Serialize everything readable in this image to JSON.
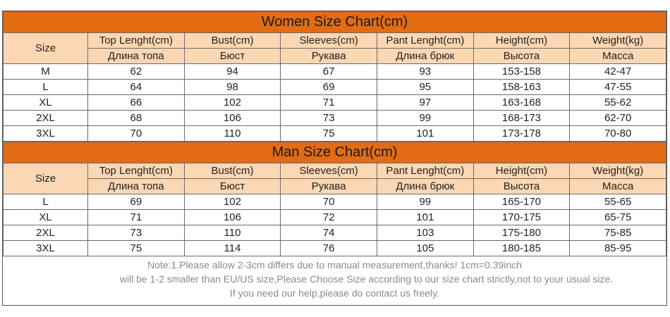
{
  "women": {
    "title": "Women Size Chart(cm)",
    "size_label": "Size",
    "headers_en": [
      "Top Lenght(cm)",
      "Bust(cm)",
      "Sleeves(cm)",
      "Pant Lenght(cm)",
      "Height(cm)",
      "Weight(kg)"
    ],
    "headers_ru": [
      "Длина топа",
      "Бюст",
      "Рукава",
      "Длина брюк",
      "Высота",
      "Масса"
    ],
    "rows": [
      [
        "M",
        "62",
        "94",
        "67",
        "93",
        "153-158",
        "42-47"
      ],
      [
        "L",
        "64",
        "98",
        "69",
        "95",
        "158-163",
        "47-55"
      ],
      [
        "XL",
        "66",
        "102",
        "71",
        "97",
        "163-168",
        "55-62"
      ],
      [
        "2XL",
        "68",
        "106",
        "73",
        "99",
        "168-173",
        "62-70"
      ],
      [
        "3XL",
        "70",
        "110",
        "75",
        "101",
        "173-178",
        "70-80"
      ]
    ]
  },
  "men": {
    "title": "Man Size Chart(cm)",
    "size_label": "Size",
    "headers_en": [
      "Top Lenght(cm)",
      "Bust(cm)",
      "Sleeves(cm)",
      "Pant Lenght(cm)",
      "Height(cm)",
      "Weight(kg)"
    ],
    "headers_ru": [
      "Длина топа",
      "Бюст",
      "Рукава",
      "Длина брюк",
      "Высота",
      "Масса"
    ],
    "rows": [
      [
        "L",
        "69",
        "102",
        "70",
        "99",
        "165-170",
        "55-65"
      ],
      [
        "XL",
        "71",
        "106",
        "72",
        "101",
        "170-175",
        "65-75"
      ],
      [
        "2XL",
        "73",
        "110",
        "74",
        "103",
        "175-180",
        "75-85"
      ],
      [
        "3XL",
        "75",
        "114",
        "76",
        "105",
        "180-185",
        "85-95"
      ]
    ]
  },
  "notes": [
    "Note:1.Please allow 2-3cm differs due to manual measurement,thanks! 1cm=0.39inch",
    "will be 1-2 smaller than EU/US size,Please Choose Size according to our size chart strictly,not to your usual size.",
    "If you need our help,please do contact us freely."
  ],
  "colors": {
    "title_bg": "#e26b14",
    "header_bg": "#fcd7b3",
    "border": "#6a6a6a"
  }
}
